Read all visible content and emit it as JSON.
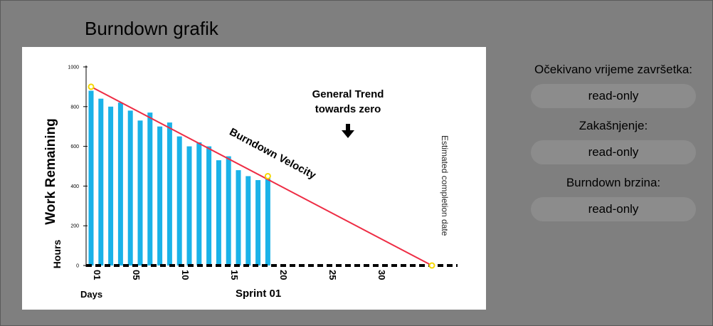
{
  "page": {
    "title": "Burndown grafik"
  },
  "fields": [
    {
      "label": "Očekivano vrijeme završetka:",
      "value": "read-only"
    },
    {
      "label": "Zakašnjenje:",
      "value": "read-only"
    },
    {
      "label": "Burndown brzina:",
      "value": "read-only"
    }
  ],
  "colors": {
    "background": "#7f7f7f",
    "bar": "#1ab2e8",
    "velocity_line": "#ee2c44",
    "marker": "#f5d800"
  },
  "chart_data": {
    "type": "bar",
    "ylabel": "Work Remaining",
    "ylabel_unit": "Hours",
    "xlabel": "Sprint 01",
    "xlabel_left": "Days",
    "ylim": [
      0,
      1000
    ],
    "yticks": [
      "0",
      "200",
      "400",
      "600",
      "800",
      "1000"
    ],
    "xticks": [
      "01",
      "05",
      "10",
      "15",
      "20",
      "25",
      "30"
    ],
    "x": [
      1,
      2,
      3,
      4,
      5,
      6,
      7,
      8,
      9,
      10,
      11,
      12,
      13,
      14,
      15,
      16,
      17,
      18,
      19
    ],
    "values": [
      880,
      840,
      800,
      820,
      780,
      730,
      770,
      700,
      720,
      650,
      600,
      620,
      600,
      530,
      550,
      480,
      450,
      430,
      450
    ],
    "velocity_line": {
      "label": "Burndown Velocity",
      "from": [
        1,
        900
      ],
      "to": [
        36,
        0
      ],
      "marker_at": [
        19,
        450
      ]
    },
    "annotation_trend": "General Trend\ntowards zero",
    "annotation_completion": "Estimated completion date"
  }
}
